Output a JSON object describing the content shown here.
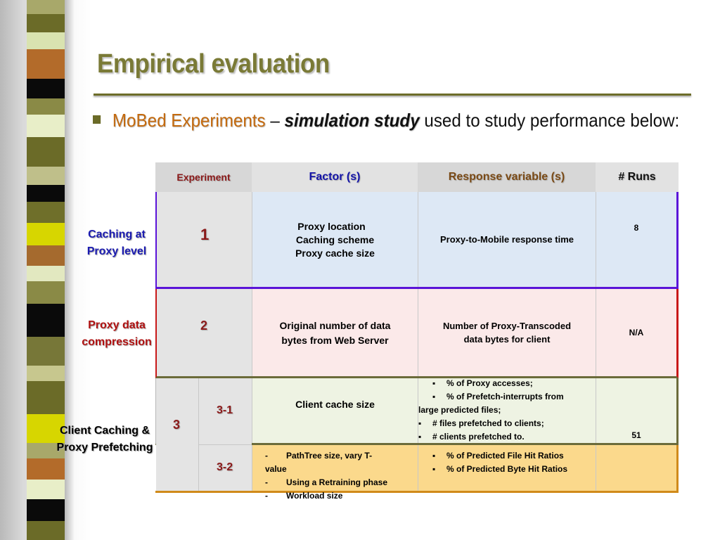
{
  "slide": {
    "title": "Empirical evaluation",
    "bullet": {
      "lead": "MoBed Experiments",
      "dash": "–",
      "emphasis": "simulation study",
      "rest": "used to study performance below:"
    }
  },
  "table": {
    "headers": {
      "experiment": "Experiment",
      "factors": "Factor (s)",
      "response": "Response variable (s)",
      "runs": "#  Runs"
    },
    "rows": [
      {
        "side_label_line1": "Caching at",
        "side_label_line2": "Proxy level",
        "experiment": "1",
        "factors": [
          "Proxy location",
          "Caching scheme",
          "Proxy cache size"
        ],
        "response": "Proxy-to-Mobile response time",
        "runs": "8"
      },
      {
        "side_label_line1": "Proxy data",
        "side_label_line2": "compression",
        "experiment": "2",
        "factors": [
          "Original number of data",
          "bytes from Web Server"
        ],
        "response": [
          "Number of Proxy-Transcoded",
          "data bytes for client"
        ],
        "runs": "N/A"
      },
      {
        "side_label_line1": "Client Caching  &",
        "side_label_line2": "Proxy Prefetching",
        "experiment": "3",
        "sub": [
          {
            "id": "3-1",
            "factors": "Client cache size",
            "response": [
              {
                "marker": "▪",
                "text": "% of Proxy accesses;"
              },
              {
                "marker": "▪",
                "text": "% of Prefetch-interrupts from"
              },
              {
                "marker": "",
                "text": "large predicted files;"
              },
              {
                "marker": "▪",
                "text": "#  files prefetched to clients;"
              },
              {
                "marker": "▪",
                "text": "#  clients prefetched to."
              }
            ]
          },
          {
            "id": "3-2",
            "factors": [
              {
                "marker": "-",
                "text": "PathTree size,  vary T-"
              },
              {
                "marker": "",
                "text": "value"
              },
              {
                "marker": "-",
                "text": "Using a Retraining phase"
              },
              {
                "marker": "-",
                "text": "Workload size"
              }
            ],
            "response": [
              {
                "marker": "▪",
                "text": "% of Predicted File Hit Ratios"
              },
              {
                "marker": "▪",
                "text": "% of Predicted Byte Hit Ratios"
              }
            ]
          }
        ],
        "runs": "51"
      }
    ]
  },
  "colors": {
    "title": "#7a7a36",
    "bullet_lead": "#c46a0e",
    "side_label_1": "#1a1ab0",
    "side_label_2": "#b01212",
    "side_label_3": "#000000",
    "header_factor": "#1414a8",
    "header_response": "#7a4a16",
    "header_experiment": "#8b1a1a",
    "row1_bg": "#dde8f5",
    "row2_bg": "#fbe9e9",
    "row3_bg": "#eef3e3",
    "row4_bg": "#fbd98c"
  }
}
